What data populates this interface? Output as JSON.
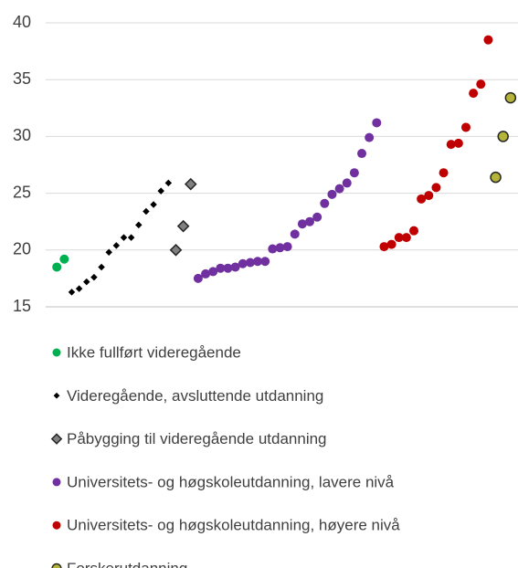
{
  "chart_data": {
    "type": "scatter",
    "xlim": [
      -1.5,
      62
    ],
    "ylim": [
      15,
      40
    ],
    "yticks": [
      15,
      20,
      25,
      30,
      35,
      40
    ],
    "grid": true,
    "legend": "bottom",
    "series": [
      {
        "name": "Ikke fullført videregående",
        "color": "#00b050",
        "marker": "circle",
        "x": [
          0,
          1
        ],
        "values": [
          18.5,
          19.2
        ]
      },
      {
        "name": "Videregående, avsluttende utdanning",
        "color": "#000000",
        "marker": "diamond",
        "x": [
          2,
          3,
          4,
          5,
          6,
          7,
          8,
          9,
          10,
          11,
          12,
          13,
          14,
          15
        ],
        "values": [
          16.3,
          16.6,
          17.2,
          17.6,
          18.5,
          19.8,
          20.4,
          21.1,
          21.1,
          22.2,
          23.4,
          24.0,
          25.2,
          25.9
        ]
      },
      {
        "name": "Påbygging til videregående utdanning",
        "color": "#808080",
        "marker": "diamond-outlined",
        "x": [
          16,
          17,
          18
        ],
        "values": [
          20.0,
          22.1,
          25.8
        ]
      },
      {
        "name": "Universitets- og høgskoleutdanning, lavere nivå",
        "color": "#7030a0",
        "marker": "circle",
        "x": [
          19,
          20,
          21,
          22,
          23,
          24,
          25,
          26,
          27,
          28,
          29,
          30,
          31,
          32,
          33,
          34,
          35,
          36,
          37,
          38,
          39,
          40,
          41,
          42,
          43
        ],
        "values": [
          17.5,
          17.9,
          18.1,
          18.4,
          18.4,
          18.5,
          18.8,
          18.9,
          19.0,
          19.0,
          20.1,
          20.2,
          20.3,
          21.4,
          22.3,
          22.5,
          22.9,
          24.1,
          24.9,
          25.4,
          25.9,
          26.8,
          28.5,
          29.9,
          31.2
        ]
      },
      {
        "name": "Universitets- og høgskoleutdanning, høyere nivå",
        "color": "#c00000",
        "marker": "circle",
        "x": [
          44,
          45,
          46,
          47,
          48,
          49,
          50,
          51,
          52,
          53,
          54,
          55,
          56,
          57,
          58
        ],
        "values": [
          20.3,
          20.5,
          21.1,
          21.1,
          21.7,
          24.5,
          24.8,
          25.5,
          26.8,
          29.3,
          29.4,
          30.8,
          33.8,
          34.6,
          38.5
        ]
      },
      {
        "name": "Forskerutdanning",
        "color": "#b4b43a",
        "marker": "circle-outlined",
        "x": [
          59,
          60,
          61
        ],
        "values": [
          26.4,
          30.0,
          33.4
        ]
      }
    ]
  }
}
